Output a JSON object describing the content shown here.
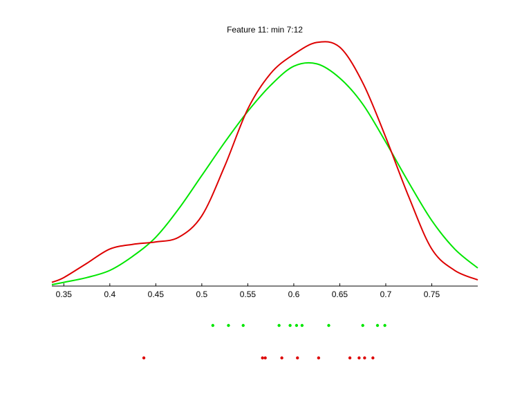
{
  "chart_data": {
    "type": "line",
    "title": "Feature 11: min 7:12",
    "xlabel": "",
    "ylabel": "",
    "xlim": [
      0.337,
      0.8
    ],
    "ylim": [
      0,
      1.03
    ],
    "xticks": [
      "0.35",
      "0.4",
      "0.45",
      "0.5",
      "0.55",
      "0.6",
      "0.65",
      "0.7",
      "0.75"
    ],
    "grid": false,
    "series": [
      {
        "color": "#00e600",
        "curve": {
          "x": [
            0.337,
            0.35,
            0.375,
            0.4,
            0.425,
            0.45,
            0.475,
            0.5,
            0.525,
            0.55,
            0.575,
            0.6,
            0.625,
            0.65,
            0.675,
            0.7,
            0.725,
            0.75,
            0.775,
            0.8
          ],
          "y": [
            0.0,
            0.01,
            0.03,
            0.06,
            0.12,
            0.2,
            0.32,
            0.46,
            0.6,
            0.73,
            0.84,
            0.92,
            0.93,
            0.87,
            0.76,
            0.6,
            0.43,
            0.27,
            0.15,
            0.07
          ]
        },
        "samples": [
          0.512,
          0.529,
          0.545,
          0.584,
          0.596,
          0.603,
          0.609,
          0.638,
          0.675,
          0.691,
          0.699
        ]
      },
      {
        "color": "#dd0000",
        "curve": {
          "x": [
            0.337,
            0.35,
            0.375,
            0.4,
            0.425,
            0.45,
            0.475,
            0.5,
            0.525,
            0.55,
            0.575,
            0.6,
            0.625,
            0.65,
            0.675,
            0.7,
            0.725,
            0.75,
            0.775,
            0.8
          ],
          "y": [
            0.01,
            0.03,
            0.09,
            0.15,
            0.17,
            0.18,
            0.2,
            0.29,
            0.5,
            0.74,
            0.89,
            0.97,
            1.02,
            1.0,
            0.85,
            0.62,
            0.37,
            0.15,
            0.06,
            0.02
          ]
        },
        "samples": [
          0.437,
          0.566,
          0.569,
          0.587,
          0.604,
          0.627,
          0.661,
          0.671,
          0.677,
          0.686
        ]
      }
    ]
  }
}
